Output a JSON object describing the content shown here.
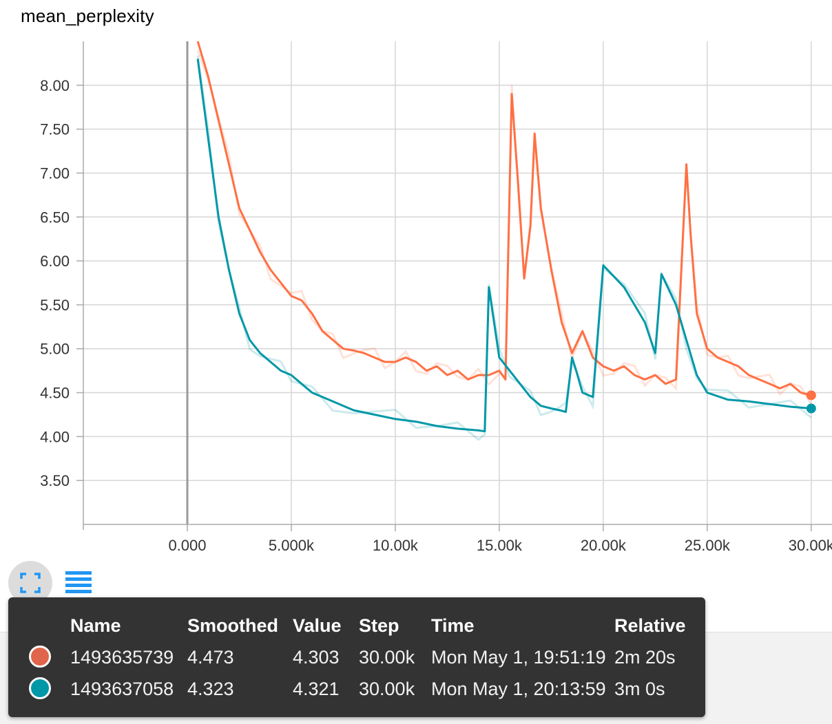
{
  "title": "mean_perplexity",
  "chart_data": {
    "type": "line",
    "title": "mean_perplexity",
    "xlabel": "",
    "ylabel": "",
    "xlim": [
      -5000,
      31000
    ],
    "ylim": [
      3.0,
      8.5
    ],
    "x_ticks": [
      0,
      5000,
      10000,
      15000,
      20000,
      25000,
      30000
    ],
    "x_tick_labels": [
      "0.000",
      "5.000k",
      "10.00k",
      "15.00k",
      "20.00k",
      "25.00k",
      "30.00k"
    ],
    "y_ticks": [
      3.5,
      4.0,
      4.5,
      5.0,
      5.5,
      6.0,
      6.5,
      7.0,
      7.5,
      8.0
    ],
    "y_tick_labels": [
      "3.50",
      "4.00",
      "4.50",
      "5.00",
      "5.50",
      "6.00",
      "6.50",
      "7.00",
      "7.50",
      "8.00"
    ],
    "grid": true,
    "series": [
      {
        "name": "1493635739",
        "color": "#ff7043",
        "x": [
          500,
          1000,
          1500,
          2000,
          2500,
          3000,
          3500,
          4000,
          4500,
          5000,
          5500,
          6000,
          6500,
          7000,
          7500,
          8000,
          8500,
          9000,
          9500,
          10000,
          10500,
          11000,
          11500,
          12000,
          12500,
          13000,
          13500,
          14000,
          14500,
          15000,
          15300,
          15600,
          15900,
          16200,
          16500,
          16700,
          17000,
          17500,
          18000,
          18500,
          19000,
          19500,
          20000,
          20500,
          21000,
          21500,
          22000,
          22500,
          23000,
          23500,
          24000,
          24200,
          24500,
          25000,
          25500,
          26000,
          26500,
          27000,
          27500,
          28000,
          28500,
          29000,
          29500,
          30000
        ],
        "values": [
          8.5,
          8.1,
          7.6,
          7.1,
          6.6,
          6.35,
          6.1,
          5.9,
          5.75,
          5.6,
          5.55,
          5.4,
          5.2,
          5.1,
          5.0,
          4.98,
          4.95,
          4.9,
          4.85,
          4.85,
          4.9,
          4.85,
          4.75,
          4.8,
          4.7,
          4.75,
          4.65,
          4.7,
          4.7,
          4.75,
          4.65,
          7.9,
          6.9,
          5.8,
          6.4,
          7.45,
          6.6,
          5.9,
          5.3,
          4.95,
          5.2,
          4.9,
          4.8,
          4.75,
          4.8,
          4.7,
          4.65,
          4.7,
          4.6,
          4.65,
          7.1,
          6.3,
          5.4,
          5.0,
          4.9,
          4.85,
          4.8,
          4.7,
          4.65,
          4.6,
          4.55,
          4.6,
          4.5,
          4.47
        ]
      },
      {
        "name": "1493637058",
        "color": "#0097a7",
        "x": [
          500,
          1000,
          1500,
          2000,
          2500,
          3000,
          3500,
          4000,
          4500,
          5000,
          5500,
          6000,
          7000,
          8000,
          9000,
          10000,
          11000,
          12000,
          13000,
          14000,
          14300,
          14500,
          15000,
          15500,
          16000,
          16500,
          17000,
          17500,
          17900,
          18200,
          18500,
          18700,
          19000,
          19500,
          20000,
          21000,
          22000,
          22500,
          22800,
          23500,
          24000,
          24500,
          25000,
          26000,
          27000,
          28000,
          29000,
          30000
        ],
        "values": [
          8.3,
          7.4,
          6.5,
          5.9,
          5.4,
          5.1,
          4.95,
          4.85,
          4.75,
          4.7,
          4.6,
          4.5,
          4.4,
          4.3,
          4.25,
          4.2,
          4.17,
          4.12,
          4.09,
          4.07,
          4.06,
          5.7,
          4.9,
          4.75,
          4.6,
          4.45,
          4.35,
          4.32,
          4.3,
          4.28,
          4.9,
          4.75,
          4.5,
          4.45,
          5.95,
          5.7,
          5.3,
          4.95,
          5.85,
          5.5,
          5.1,
          4.7,
          4.5,
          4.42,
          4.4,
          4.37,
          4.34,
          4.32
        ]
      }
    ]
  },
  "toolbar": {
    "fit_icon": "fit-domain-icon",
    "list_icon": "data-table-icon"
  },
  "tooltip": {
    "headers": [
      "Name",
      "Smoothed",
      "Value",
      "Step",
      "Time",
      "Relative"
    ],
    "rows": [
      {
        "color": "#e0654b",
        "name": "1493635739",
        "smoothed": "4.473",
        "value": "4.303",
        "step": "30.00k",
        "time": "Mon May 1, 19:51:19",
        "relative": "2m 20s"
      },
      {
        "color": "#0097a7",
        "name": "1493637058",
        "smoothed": "4.323",
        "value": "4.321",
        "step": "30.00k",
        "time": "Mon May 1, 20:13:59",
        "relative": "3m 0s"
      }
    ]
  }
}
